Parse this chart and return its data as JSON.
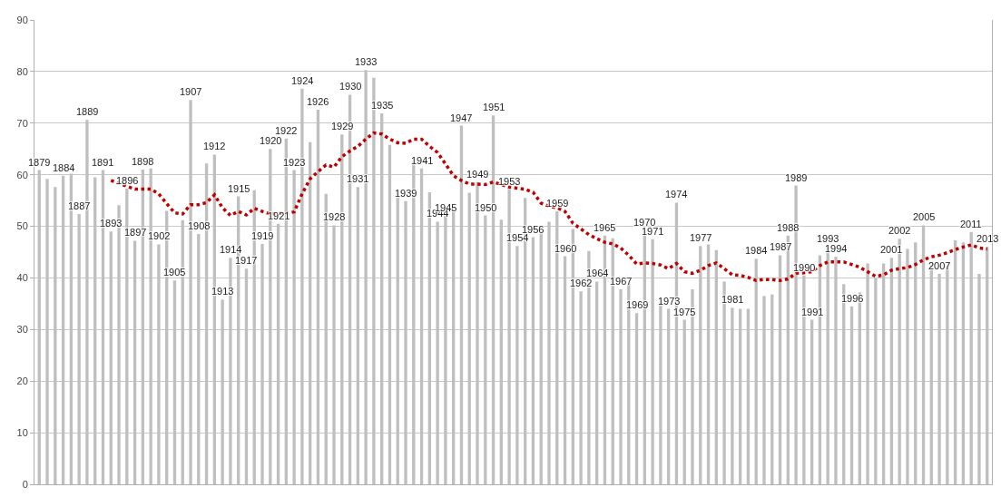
{
  "chart_data": {
    "type": "bar",
    "categories": [
      "1879",
      null,
      null,
      "1884",
      null,
      "1887",
      "1889",
      null,
      "1891",
      "1893",
      null,
      "1896",
      "1897",
      "1898",
      null,
      "1902",
      null,
      "1905",
      null,
      "1907",
      "1908",
      null,
      "1912",
      "1913",
      "1914",
      "1915",
      "1917",
      null,
      "1919",
      "1920",
      "1921",
      "1922",
      "1923",
      "1924",
      null,
      "1926",
      null,
      "1928",
      "1929",
      "1930",
      "1931",
      "1933",
      null,
      "1935",
      null,
      null,
      "1939",
      null,
      "1941",
      null,
      "1944",
      "1945",
      null,
      "1947",
      null,
      "1949",
      "1950",
      "1951",
      null,
      "1953",
      "1954",
      null,
      "1956",
      null,
      null,
      "1959",
      "1960",
      null,
      "1962",
      null,
      "1964",
      "1965",
      null,
      "1967",
      null,
      "1969",
      "1970",
      "1971",
      null,
      "1973",
      "1974",
      "1975",
      null,
      "1977",
      null,
      null,
      null,
      "1981",
      null,
      null,
      "1984",
      null,
      null,
      "1987",
      "1988",
      "1989",
      "1990",
      "1991",
      null,
      "1993",
      "1994",
      null,
      "1996",
      null,
      null,
      null,
      null,
      "2001",
      "2002",
      null,
      null,
      "2005",
      null,
      "2007",
      null,
      null,
      null,
      "2011",
      null,
      "2013"
    ],
    "series": [
      {
        "color": "#bfbfbf",
        "values": [
          60.9,
          59.2,
          57.6,
          59.8,
          60.2,
          52.4,
          70.6,
          59.5,
          60.9,
          49.0,
          54.1,
          57.3,
          47.2,
          61.0,
          61.2,
          46.5,
          53.0,
          39.5,
          51.2,
          74.5,
          48.5,
          62.2,
          63.9,
          35.8,
          43.9,
          55.8,
          41.8,
          57.0,
          46.6,
          65.0,
          50.5,
          67.0,
          60.9,
          76.7,
          66.3,
          72.6,
          56.3,
          50.2,
          67.8,
          75.5,
          57.6,
          80.3,
          78.8,
          71.9,
          65.8,
          56.9,
          54.9,
          62.6,
          61.2,
          56.6,
          50.9,
          52.1,
          54.4,
          69.5,
          56.5,
          58.6,
          52.1,
          71.5,
          51.3,
          57.2,
          46.2,
          55.5,
          47.9,
          49.0,
          50.9,
          52.9,
          44.2,
          49.5,
          37.4,
          45.2,
          39.3,
          48.2,
          47.7,
          37.8,
          38.9,
          33.2,
          49.2,
          47.5,
          35.2,
          34.0,
          54.6,
          31.9,
          37.8,
          46.2,
          46.5,
          45.4,
          39.3,
          34.2,
          34.0,
          34.0,
          43.7,
          36.5,
          36.8,
          44.4,
          48.2,
          57.9,
          40.5,
          31.9,
          44.4,
          46.1,
          44.1,
          38.8,
          34.5,
          37.2,
          42.8,
          39.9,
          42.8,
          43.9,
          47.6,
          45.6,
          46.9,
          50.2,
          43.2,
          40.8,
          42.4,
          47.3,
          46.9,
          48.9,
          40.8,
          46.0
        ]
      },
      {
        "type": "line",
        "color": "#c00000",
        "line_style": "dotted",
        "marker": "none",
        "values": [
          null,
          null,
          null,
          null,
          null,
          null,
          null,
          null,
          null,
          58.9,
          58.3,
          57.8,
          57.2,
          57.2,
          57.2,
          56.3,
          54.4,
          52.6,
          52.4,
          54.2,
          54.2,
          54.6,
          56.1,
          53.6,
          52.1,
          52.9,
          52.2,
          53.5,
          52.9,
          52.4,
          52.5,
          52.5,
          52.8,
          56.3,
          59.2,
          60.6,
          61.9,
          61.5,
          63.5,
          64.6,
          65.5,
          66.9,
          68.1,
          67.9,
          66.9,
          66.2,
          66.1,
          66.9,
          66.9,
          65.5,
          64.3,
          62.1,
          59.8,
          58.9,
          58.2,
          58.2,
          58.1,
          58.6,
          58.1,
          57.6,
          57.4,
          57.2,
          56.6,
          54.5,
          53.9,
          53.6,
          52.9,
          50.6,
          49.5,
          48.4,
          47.6,
          46.9,
          46.6,
          45.8,
          44.4,
          42.7,
          42.9,
          42.8,
          42.5,
          41.8,
          42.8,
          41.2,
          40.9,
          41.5,
          42.4,
          42.9,
          41.8,
          40.6,
          40.5,
          40.1,
          39.5,
          39.7,
          39.7,
          39.5,
          39.8,
          40.9,
          41.0,
          41.2,
          42.4,
          43.1,
          43.1,
          43.1,
          42.6,
          42.1,
          41.2,
          40.3,
          40.6,
          41.5,
          41.8,
          42.0,
          42.6,
          43.5,
          44.1,
          44.4,
          44.9,
          45.5,
          46.0,
          46.4,
          45.8,
          45.6
        ]
      }
    ],
    "ylim": [
      0,
      90
    ],
    "yticks": [
      0,
      10,
      20,
      30,
      40,
      50,
      60,
      70,
      80,
      90
    ],
    "grid": "y",
    "tick_labels": "y"
  }
}
